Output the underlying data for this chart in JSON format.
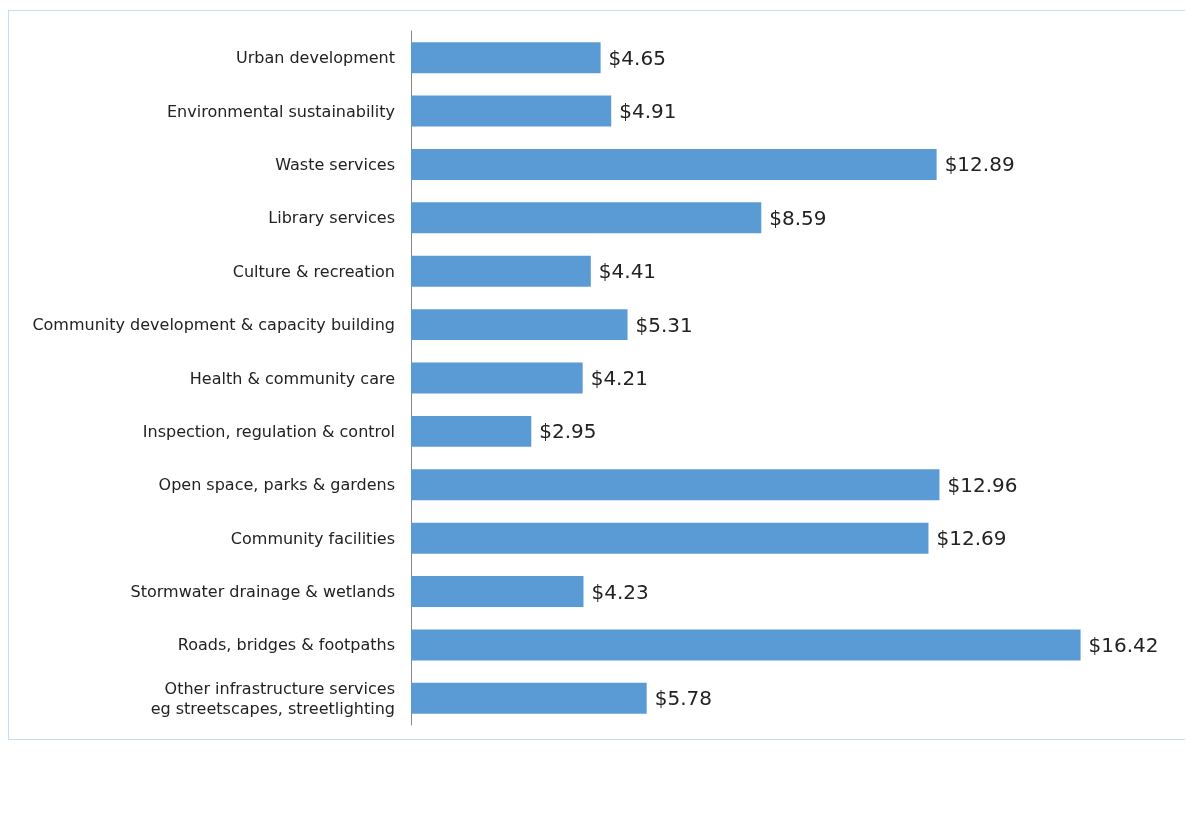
{
  "chart_data": {
    "type": "bar",
    "orientation": "horizontal",
    "categories": [
      "Urban development",
      "Environmental sustainability",
      "Waste services",
      "Library services",
      "Culture & recreation",
      "Community development & capacity building",
      "Health & community care",
      "Inspection, regulation & control",
      "Open space, parks & gardens",
      "Community facilities",
      "Stormwater drainage & wetlands",
      "Roads, bridges & footpaths",
      "Other infrastructure services\neg streetscapes, streetlighting"
    ],
    "values": [
      4.65,
      4.91,
      12.89,
      8.59,
      4.41,
      5.31,
      4.21,
      2.95,
      12.96,
      12.69,
      4.23,
      16.42,
      5.78
    ],
    "value_labels": [
      "$4.65",
      "$4.91",
      "$12.89",
      "$8.59",
      "$4.41",
      "$5.31",
      "$4.21",
      "$2.95",
      "$12.96",
      "$12.69",
      "$4.23",
      "$16.42",
      "$5.78"
    ],
    "color": "#5b9bd5"
  }
}
